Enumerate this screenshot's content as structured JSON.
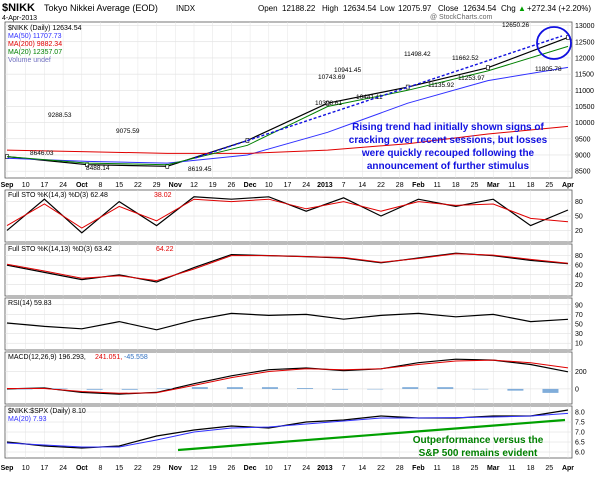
{
  "header": {
    "symbol": "$NIKK",
    "name": "Tokyo Nikkei Average (EOD)",
    "exchange": "INDX",
    "date": "4-Apr-2013",
    "open_label": "Open",
    "open": "12188.22",
    "high_label": "High",
    "high": "12634.54",
    "low_label": "Low",
    "low": "12075.97",
    "close_label": "Close",
    "close": "12634.54",
    "chg_label": "Chg",
    "chg": "+272.34 (+2.20%)",
    "chg_arrow": "▲",
    "watermark": "@ StockCharts.com",
    "colors": {
      "up": "#00a000",
      "price": "#000000",
      "ma50": "#3030ff",
      "ma200": "#e00000",
      "ma20": "#008000"
    }
  },
  "price_panel": {
    "legend": [
      {
        "label": "$NIKK (Daily) 12634.54",
        "color": "#000000"
      },
      {
        "label": "MA(50) 11707.73",
        "color": "#3030ff"
      },
      {
        "label": "MA(200) 9882.34",
        "color": "#e00000"
      },
      {
        "label": "MA(20) 12357.07",
        "color": "#008000"
      },
      {
        "label": "Volume undef",
        "color": "#7070c0"
      }
    ],
    "y_ticks": [
      "13000",
      "12500",
      "12000",
      "11500",
      "11000",
      "10500",
      "10000",
      "9500",
      "9000",
      "8500"
    ],
    "annotations": [
      "9288.53",
      "8646.03",
      "8488.14",
      "9075.59",
      "8619.45",
      "10743.69",
      "10398.61",
      "10941.45",
      "10441.11",
      "11498.42",
      "11662.52",
      "11135.92",
      "11253.97",
      "12650.26",
      "11805.78"
    ],
    "comment": "Rising trend had initially shown signs of cracking over recent sessions, but losses were quickly recouped following the announcement of further stimulus",
    "comment_color": "#1010e0"
  },
  "x_axis": {
    "labels": [
      "Sep",
      "10",
      "17",
      "24",
      "Oct",
      "8",
      "15",
      "22",
      "29",
      "Nov",
      "12",
      "19",
      "26",
      "Dec",
      "10",
      "17",
      "24",
      "2013",
      "7",
      "14",
      "22",
      "28",
      "Feb",
      "11",
      "18",
      "25",
      "Mar",
      "11",
      "18",
      "25",
      "Apr"
    ],
    "bold": [
      "Sep",
      "Oct",
      "Nov",
      "Dec",
      "2013",
      "Feb",
      "Mar",
      "Apr"
    ]
  },
  "sto_fast": {
    "label": "Full STO %K(14,3) %D(3) 62.48",
    "label_d": "38.02",
    "y_ticks": [
      "80",
      "50",
      "20"
    ]
  },
  "sto_slow": {
    "label": "Full STO %K(14,13) %D(3) 63.42",
    "label_d": "64.22",
    "y_ticks": [
      "80",
      "60",
      "40",
      "20"
    ]
  },
  "rsi": {
    "label": "RSI(14) 59.83",
    "y_ticks": [
      "90",
      "70",
      "50",
      "30",
      "10"
    ]
  },
  "macd": {
    "label": "MACD(12,26,9) 196.293,",
    "label_signal": "241.051,",
    "label_hist": "-45.558",
    "y_ticks": [
      "200",
      "0"
    ]
  },
  "ratio": {
    "legend": [
      {
        "label": "$NIKK:$SPX (Daily) 8.10",
        "color": "#000000"
      },
      {
        "label": "MA(20) 7.93",
        "color": "#3030ff"
      }
    ],
    "y_ticks": [
      "8.0",
      "7.5",
      "7.0",
      "6.5",
      "6.0"
    ],
    "comment": "Outperformance versus the S&P 500 remains evident",
    "comment_color": "#008000"
  },
  "chart_data": [
    {
      "type": "line",
      "title": "$NIKK Tokyo Nikkei Average (EOD) INDX",
      "x": [
        "Sep",
        "Oct",
        "Nov",
        "Dec",
        "2013",
        "Feb",
        "Mar",
        "Apr"
      ],
      "series": [
        {
          "name": "$NIKK (Daily)",
          "values": [
            8950,
            8700,
            8650,
            9450,
            10600,
            11100,
            11700,
            12634.54
          ]
        },
        {
          "name": "MA(50)",
          "values": [
            8900,
            8800,
            8750,
            9000,
            9700,
            10600,
            11300,
            11707.73
          ]
        },
        {
          "name": "MA(200)",
          "values": [
            9150,
            9100,
            9050,
            9050,
            9150,
            9350,
            9650,
            9882.34
          ]
        },
        {
          "name": "MA(20)",
          "values": [
            8950,
            8750,
            8700,
            9300,
            10500,
            11000,
            11600,
            12357.07
          ]
        }
      ],
      "ylim": [
        8350,
        13050
      ]
    },
    {
      "type": "line",
      "title": "Full STO %K(14,3) %D(3)",
      "series": [
        {
          "name": "%K",
          "values": [
            20,
            85,
            15,
            80,
            30,
            90,
            85,
            90,
            60,
            88,
            50,
            85,
            70,
            85,
            30,
            62.48
          ]
        },
        {
          "name": "%D",
          "values": [
            30,
            75,
            25,
            70,
            40,
            85,
            80,
            85,
            65,
            80,
            60,
            80,
            72,
            75,
            45,
            38.02
          ]
        }
      ],
      "ylim": [
        0,
        100
      ]
    },
    {
      "type": "line",
      "title": "Full STO %K(14,13) %D(3)",
      "series": [
        {
          "name": "%K",
          "values": [
            60,
            45,
            30,
            40,
            25,
            55,
            82,
            80,
            78,
            75,
            65,
            75,
            85,
            80,
            70,
            63.42
          ]
        },
        {
          "name": "%D",
          "values": [
            62,
            48,
            33,
            38,
            28,
            52,
            80,
            80,
            78,
            76,
            66,
            74,
            84,
            81,
            72,
            64.22
          ]
        }
      ],
      "ylim": [
        0,
        100
      ]
    },
    {
      "type": "line",
      "title": "RSI(14)",
      "series": [
        {
          "name": "RSI(14)",
          "values": [
            52,
            45,
            40,
            55,
            38,
            58,
            72,
            68,
            70,
            60,
            68,
            72,
            65,
            70,
            55,
            59.83
          ]
        }
      ],
      "ylim": [
        0,
        100
      ]
    },
    {
      "type": "line",
      "title": "MACD(12,26,9)",
      "series": [
        {
          "name": "MACD",
          "values": [
            0,
            10,
            -40,
            -60,
            -40,
            60,
            150,
            220,
            240,
            210,
            230,
            300,
            340,
            330,
            280,
            196.293
          ]
        },
        {
          "name": "Signal",
          "values": [
            5,
            5,
            -30,
            -50,
            -45,
            40,
            130,
            200,
            230,
            220,
            230,
            280,
            320,
            330,
            300,
            241.051
          ]
        },
        {
          "name": "Histogram",
          "values": [
            -5,
            5,
            -10,
            -10,
            5,
            20,
            20,
            20,
            10,
            -10,
            0,
            20,
            20,
            0,
            -20,
            -45.558
          ]
        }
      ],
      "ylim": [
        -150,
        400
      ]
    },
    {
      "type": "line",
      "title": "$NIKK:$SPX (Daily)",
      "series": [
        {
          "name": "$NIKK:$SPX",
          "values": [
            6.5,
            6.3,
            6.2,
            6.3,
            6.8,
            7.1,
            7.3,
            7.2,
            7.5,
            7.6,
            7.8,
            7.7,
            7.7,
            7.8,
            7.8,
            8.1
          ]
        },
        {
          "name": "MA(20)",
          "values": [
            6.45,
            6.35,
            6.25,
            6.25,
            6.6,
            7.0,
            7.2,
            7.25,
            7.4,
            7.55,
            7.7,
            7.7,
            7.72,
            7.75,
            7.8,
            7.93
          ]
        }
      ],
      "ylim": [
        5.8,
        8.2
      ]
    }
  ]
}
